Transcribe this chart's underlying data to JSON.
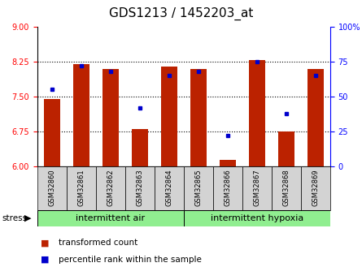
{
  "title": "GDS1213 / 1452203_at",
  "samples": [
    "GSM32860",
    "GSM32861",
    "GSM32862",
    "GSM32863",
    "GSM32864",
    "GSM32865",
    "GSM32866",
    "GSM32867",
    "GSM32868",
    "GSM32869"
  ],
  "transformed_count": [
    7.45,
    8.2,
    8.1,
    6.8,
    8.15,
    8.1,
    6.15,
    8.28,
    6.75,
    8.1
  ],
  "percentile_rank": [
    55,
    72,
    68,
    42,
    65,
    68,
    22,
    75,
    38,
    65
  ],
  "bar_color": "#bb2200",
  "dot_color": "#0000cc",
  "left_ylim": [
    6,
    9
  ],
  "right_ylim": [
    0,
    100
  ],
  "left_yticks": [
    6,
    6.75,
    7.5,
    8.25,
    9
  ],
  "right_yticks": [
    0,
    25,
    50,
    75,
    100
  ],
  "right_yticklabels": [
    "0",
    "25",
    "50",
    "75",
    "100%"
  ],
  "hlines": [
    6.75,
    7.5,
    8.25
  ],
  "group1_label": "intermittent air",
  "group2_label": "intermittent hypoxia",
  "group1_count": 5,
  "group2_count": 5,
  "stress_label": "stress",
  "legend_red": "transformed count",
  "legend_blue": "percentile rank within the sample",
  "bar_width": 0.55,
  "group_bg_color": "#90ee90",
  "label_bg_color": "#d3d3d3",
  "title_fontsize": 11,
  "tick_fontsize": 7,
  "axis_label_fontsize": 7,
  "group_fontsize": 8,
  "legend_fontsize": 7.5
}
